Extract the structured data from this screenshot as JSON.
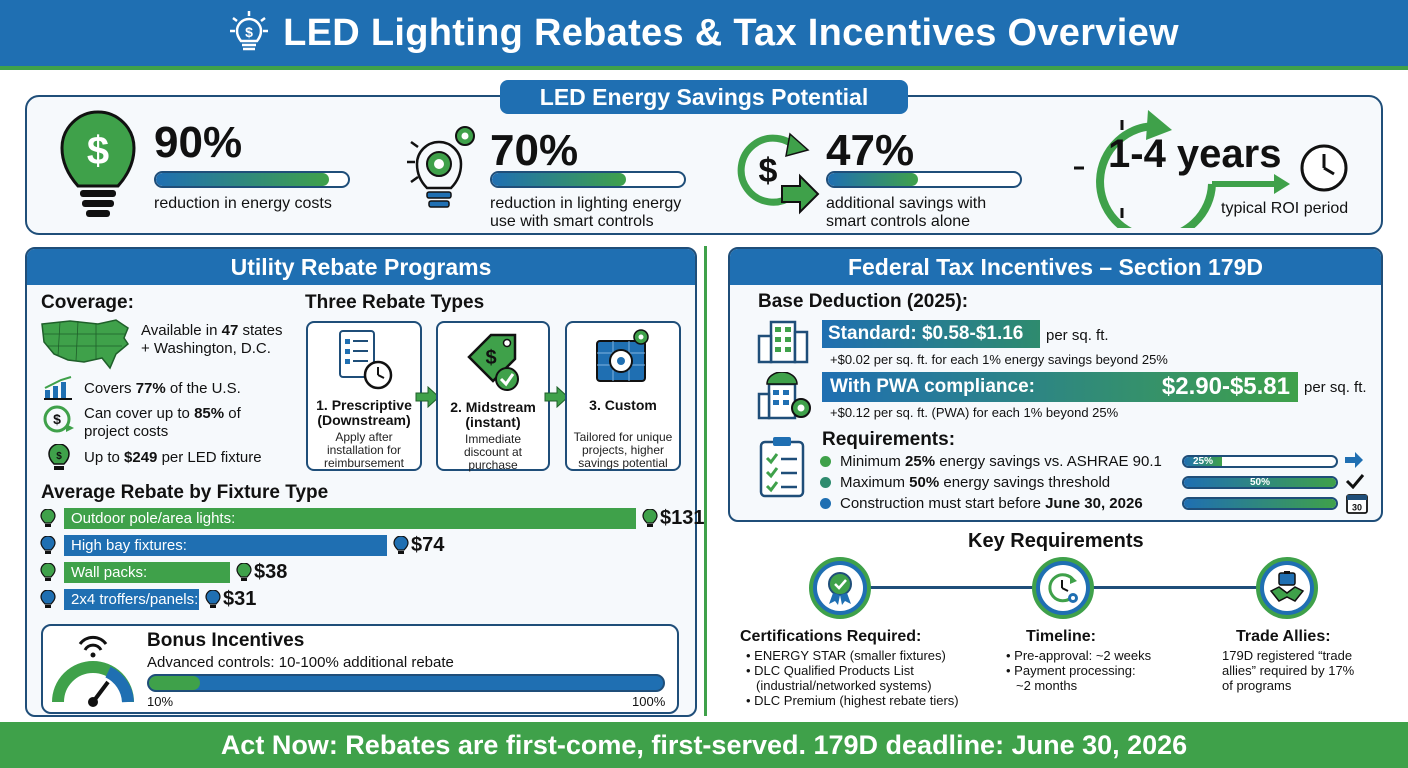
{
  "header": {
    "title": "LED Lighting Rebates & Tax Incentives Overview"
  },
  "savings": {
    "title": "LED Energy Savings Potential",
    "stats": [
      {
        "value": "90%",
        "fill": 0.9,
        "desc": "reduction in energy costs"
      },
      {
        "value": "70%",
        "fill": 0.7,
        "desc": "reduction in lighting energy use with smart controls"
      },
      {
        "value": "47%",
        "fill": 0.47,
        "desc": "additional savings with smart controls alone"
      }
    ],
    "roi": {
      "value": "1-4 years",
      "desc": "typical ROI period"
    }
  },
  "utility": {
    "title": "Utility Rebate Programs",
    "coverage_title": "Coverage:",
    "coverage_states_pre": "Available in ",
    "coverage_states_num": "47",
    "coverage_states_post": " states",
    "coverage_dc": "+ Washington, D.C.",
    "covers_pre": "Covers ",
    "covers_num": "77%",
    "covers_post": " of the U.S.",
    "cost_pre": "Can cover up to ",
    "cost_num": "85%",
    "cost_post": " of",
    "cost_line2": "project costs",
    "fixture_pre": "Up to ",
    "fixture_num": "$249",
    "fixture_post": " per LED fixture",
    "types_title": "Three Rebate Types",
    "types": [
      {
        "title1": "1. Prescriptive",
        "title2": "(Downstream)",
        "desc": [
          "Apply after",
          "installation for",
          "reimbursement"
        ]
      },
      {
        "title1": "2. Midstream",
        "title2": "(instant)",
        "desc": [
          "Immediate",
          "discount at",
          "purchase"
        ]
      },
      {
        "title1": "3. Custom",
        "title2": "",
        "desc": [
          "Tailored for unique",
          "projects, higher",
          "savings potential"
        ]
      }
    ],
    "avg_title": "Average Rebate by Fixture Type",
    "fixtures": [
      {
        "label": "Outdoor pole/area lights:",
        "value": 131,
        "display": "$131",
        "color": "#3fa14a"
      },
      {
        "label": "High bay fixtures:",
        "value": 74,
        "display": "$74",
        "color": "#1f6fb2"
      },
      {
        "label": "Wall packs:",
        "value": 38,
        "display": "$38",
        "color": "#3fa14a"
      },
      {
        "label": "2x4 troffers/panels:",
        "value": 31,
        "display": "$31",
        "color": "#1f6fb2"
      }
    ],
    "bonus": {
      "title": "Bonus Incentives",
      "desc": "Advanced controls: 10-100% additional rebate",
      "min": "10%",
      "max": "100%",
      "fill": 0.1
    }
  },
  "federal": {
    "title": "Federal Tax Incentives – Section 179D",
    "base_title": "Base Deduction (2025):",
    "standard_label": "Standard: $0.58-$1.16",
    "standard_unit": "per sq. ft.",
    "standard_note": "+$0.02 per sq. ft. for each 1% energy savings beyond 25%",
    "pwa_label": "With PWA compliance:",
    "pwa_value": "$2.90-$5.81",
    "pwa_unit": "per sq. ft.",
    "pwa_note": "+$0.12 per sq. ft. (PWA) for each 1% beyond 25%",
    "req_title": "Requirements:",
    "reqs": [
      {
        "pre": "Minimum ",
        "bold": "25%",
        "post": " energy savings vs. ASHRAE 90.1",
        "bar_label": "25%",
        "fill": 0.25,
        "color": "#3fa14a"
      },
      {
        "pre": "Maximum ",
        "bold": "50%",
        "post": " energy savings threshold",
        "bar_label": "50%",
        "fill": 1.0,
        "color": "#2e8b6e"
      },
      {
        "pre": "Construction must start before ",
        "bold": "June 30, 2026",
        "post": "",
        "bar_label": "",
        "fill": 1.0,
        "color": "#1f6fb2"
      }
    ],
    "calendar_day": "30"
  },
  "key": {
    "title": "Key Requirements",
    "certs": {
      "title": "Certifications Required:",
      "items": [
        "ENERGY STAR (smaller fixtures)",
        "DLC Qualified Products List",
        "(industrial/networked systems)",
        "DLC Premium (highest rebate tiers)"
      ]
    },
    "timeline": {
      "title": "Timeline:",
      "items": [
        "Pre-approval: ~2 weeks",
        "Payment processing:",
        "~2 months"
      ]
    },
    "allies": {
      "title": "Trade Allies:",
      "lines": [
        "179D registered “trade",
        "allies” required by 17%",
        "of programs"
      ]
    }
  },
  "footer": {
    "text": "Act Now: Rebates are first-come, first-served. 179D deadline: June 30, 2026"
  },
  "colors": {
    "blue": "#1f6fb2",
    "green": "#3fa14a",
    "navy": "#1f4e79"
  }
}
